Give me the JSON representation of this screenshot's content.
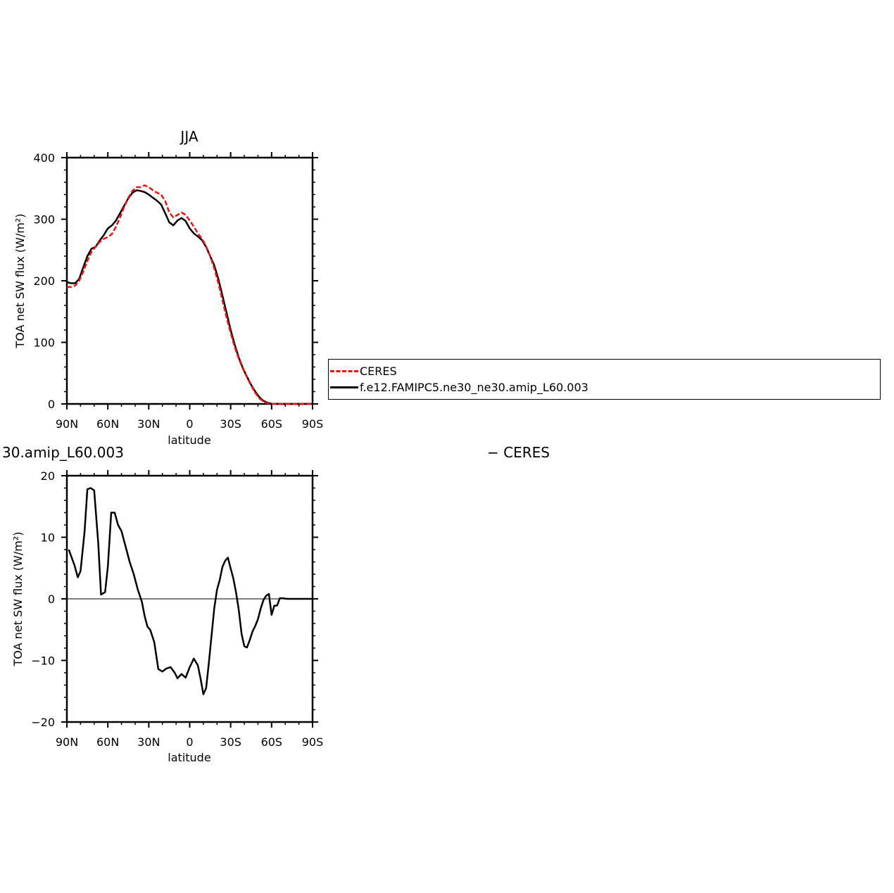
{
  "colors": {
    "ceres": "#ee1111",
    "model": "#000000"
  },
  "chart_data": [
    {
      "type": "line",
      "title": "JJA",
      "xlabel": "latitude",
      "ylabel": "TOA net SW flux (W/m²)",
      "xlim": [
        90,
        -90
      ],
      "ylim": [
        0,
        400
      ],
      "xticks": [
        {
          "value": 90,
          "label": "90N"
        },
        {
          "value": 60,
          "label": "60N"
        },
        {
          "value": 30,
          "label": "30N"
        },
        {
          "value": 0,
          "label": "0"
        },
        {
          "value": -30,
          "label": "30S"
        },
        {
          "value": -60,
          "label": "60S"
        },
        {
          "value": -90,
          "label": "90S"
        }
      ],
      "yticks": [
        0,
        100,
        200,
        300,
        400
      ],
      "yticklabels": [
        "0",
        "100",
        "200",
        "300",
        "400"
      ],
      "legend": {
        "placement": "right",
        "entries": [
          "CERES",
          "f.e12.FAMIPC5.ne30_ne30.amip_L60.003"
        ]
      },
      "series": [
        {
          "name": "CERES",
          "style": "dashed",
          "x": [
            90,
            87,
            84,
            81,
            78,
            75,
            72,
            69,
            66,
            63,
            60,
            57,
            54,
            51,
            48,
            45,
            42,
            39,
            36,
            33,
            30,
            27,
            24,
            21,
            18,
            15,
            12,
            9,
            6,
            3,
            0,
            -3,
            -6,
            -9,
            -12,
            -15,
            -18,
            -21,
            -24,
            -27,
            -30,
            -33,
            -36,
            -39,
            -42,
            -45,
            -48,
            -51,
            -54,
            -57,
            -60,
            -63,
            -66,
            -69,
            -72,
            -75,
            -78,
            -81,
            -84,
            -87,
            -90
          ],
          "y": [
            190,
            190,
            192,
            200,
            215,
            232,
            247,
            255,
            263,
            268,
            271,
            276,
            288,
            303,
            320,
            335,
            346,
            352,
            352,
            355,
            352,
            347,
            343,
            340,
            330,
            311,
            303,
            307,
            311,
            307,
            298,
            288,
            277,
            268,
            256,
            240,
            220,
            196,
            168,
            140,
            115,
            92,
            73,
            57,
            43,
            30,
            18,
            9,
            4,
            1,
            0.5,
            0.2,
            0,
            0,
            0,
            0,
            0,
            0,
            0,
            0,
            0
          ]
        },
        {
          "name": "f.e12.FAMIPC5.ne30_ne30.amip_L60.003",
          "style": "solid",
          "x": [
            90,
            87,
            84,
            81,
            78,
            75,
            72,
            69,
            66,
            63,
            60,
            57,
            54,
            51,
            48,
            45,
            42,
            39,
            36,
            33,
            30,
            27,
            24,
            21,
            18,
            15,
            12,
            9,
            6,
            3,
            0,
            -3,
            -6,
            -9,
            -12,
            -15,
            -18,
            -21,
            -24,
            -27,
            -30,
            -33,
            -36,
            -39,
            -42,
            -45,
            -48,
            -51,
            -54,
            -57,
            -60,
            -63,
            -66,
            -69,
            -72,
            -75,
            -78,
            -81,
            -84,
            -87,
            -90
          ],
          "y": [
            198,
            196,
            196,
            203,
            222,
            240,
            252,
            255,
            265,
            274,
            285,
            290,
            298,
            310,
            322,
            334,
            343,
            347,
            346,
            344,
            340,
            335,
            330,
            324,
            310,
            295,
            290,
            298,
            302,
            297,
            285,
            277,
            272,
            266,
            255,
            240,
            225,
            203,
            176,
            148,
            120,
            96,
            75,
            58,
            44,
            31,
            20,
            11,
            5,
            2,
            0.5,
            0.2,
            0,
            0,
            0,
            0,
            0,
            0,
            0,
            0,
            0
          ]
        }
      ]
    },
    {
      "type": "line",
      "title": "30.amip_L60.003",
      "title_right": "− CERES",
      "xlabel": "latitude",
      "ylabel": "TOA net SW flux (W/m²)",
      "xlim": [
        90,
        -90
      ],
      "ylim": [
        -20,
        20
      ],
      "xticks": [
        {
          "value": 90,
          "label": "90N"
        },
        {
          "value": 60,
          "label": "60N"
        },
        {
          "value": 30,
          "label": "30N"
        },
        {
          "value": 0,
          "label": "0"
        },
        {
          "value": -30,
          "label": "30S"
        },
        {
          "value": -60,
          "label": "60S"
        },
        {
          "value": -90,
          "label": "90S"
        }
      ],
      "yticks": [
        -20,
        -10,
        0,
        10,
        20
      ],
      "yticklabels": [
        "−20",
        "−10",
        "0",
        "10",
        "20"
      ],
      "series": [
        {
          "style": "solid",
          "x": [
            88.6,
            84.5,
            82,
            80,
            77,
            75,
            72.5,
            70,
            67,
            65,
            62,
            60,
            57.5,
            55,
            52.5,
            50,
            47,
            44,
            41,
            38,
            35,
            33,
            31,
            29,
            26,
            23,
            20,
            17,
            14,
            11,
            9,
            6,
            3,
            0,
            -3,
            -6,
            -8,
            -10,
            -12,
            -14,
            -16,
            -18,
            -20,
            -22,
            -24,
            -26,
            -28,
            -30,
            -32,
            -34,
            -36,
            -38,
            -40,
            -42,
            -44,
            -46,
            -48,
            -50,
            -52,
            -54,
            -56,
            -58,
            -60,
            -62,
            -64,
            -66,
            -68,
            -70,
            -72,
            -74,
            -76,
            -78,
            -80,
            -85,
            -90
          ],
          "y": [
            8,
            5.5,
            3.5,
            4.5,
            11,
            17.8,
            18,
            17.6,
            9,
            0.7,
            1.1,
            5.2,
            14,
            14,
            12,
            11,
            8.5,
            6,
            4,
            1.5,
            -0.5,
            -2.8,
            -4.5,
            -5,
            -7,
            -11.4,
            -11.8,
            -11.3,
            -11.1,
            -12,
            -12.9,
            -12.2,
            -12.8,
            -11.1,
            -9.7,
            -10.8,
            -13,
            -15.5,
            -14.5,
            -10.5,
            -6,
            -1.5,
            1.5,
            3.1,
            5.2,
            6.2,
            6.7,
            4.9,
            3.3,
            1,
            -1.9,
            -5.7,
            -7.7,
            -7.9,
            -6.7,
            -5.3,
            -4.4,
            -3.3,
            -1.6,
            -0.2,
            0.5,
            0.8,
            -2.6,
            -1.1,
            -1.1,
            0.1,
            0.1,
            0.05,
            0,
            0,
            0,
            0,
            0,
            0,
            0
          ]
        }
      ]
    }
  ]
}
